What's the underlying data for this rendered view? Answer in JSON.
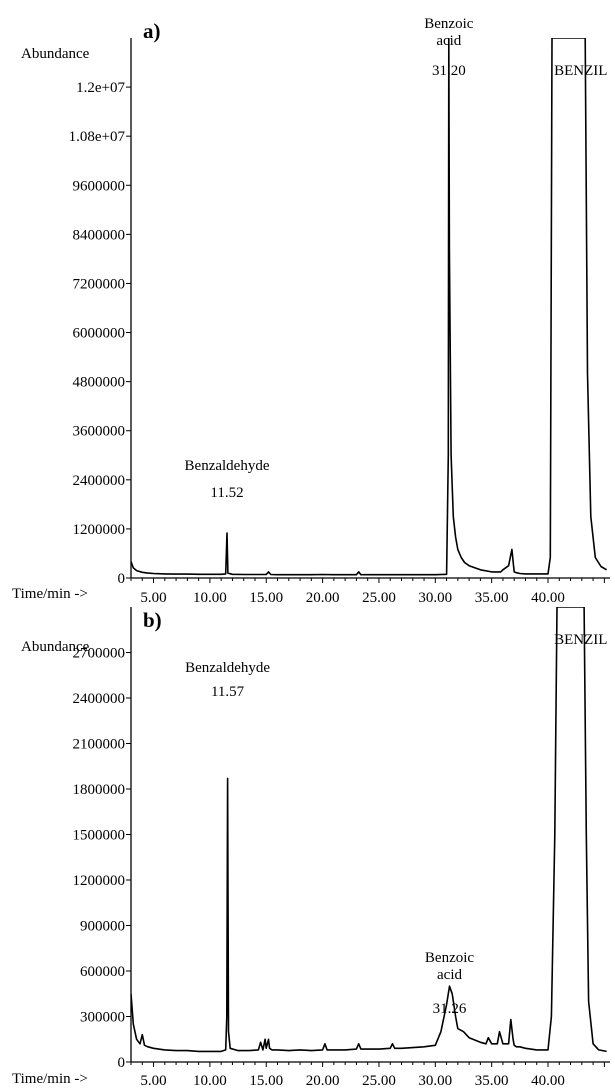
{
  "chart_data": [
    {
      "type": "line",
      "panel_label": "a)",
      "ylabel": "Abundance",
      "xlabel": "Time/min ->",
      "ylim": [
        0,
        13200000
      ],
      "xlim": [
        3.0,
        45.5
      ],
      "y_ticks": [
        0,
        1200000,
        2400000,
        3600000,
        4800000,
        6000000,
        7200000,
        8400000,
        9600000,
        10800000,
        12000000
      ],
      "y_tick_labels": [
        "0",
        "1200000",
        "2400000",
        "3600000",
        "4800000",
        "6000000",
        "7200000",
        "8400000",
        "9600000",
        "1.08e+07",
        "1.2e+07"
      ],
      "x_ticks": [
        5,
        10,
        15,
        20,
        25,
        30,
        35,
        40
      ],
      "x_tick_labels": [
        "5.00",
        "10.00",
        "15.00",
        "20.00",
        "25.00",
        "30.00",
        "35.00",
        "40.00"
      ],
      "annotations": [
        {
          "lines": [
            "Benzaldehyde",
            "11.52"
          ],
          "x": 11.52
        },
        {
          "lines": [
            "Benzoic",
            "acid",
            "31.20"
          ],
          "x": 31.2
        },
        {
          "lines": [
            "BENZIL"
          ],
          "x": 42.2
        }
      ],
      "series": [
        {
          "x": [
            3.0,
            3.2,
            3.5,
            4.0,
            4.5,
            5.0,
            6.0,
            7.0,
            8.0,
            9.0,
            10.0,
            11.0,
            11.4,
            11.52,
            11.6,
            12.0,
            13.0,
            14.0,
            15.0,
            15.2,
            15.4,
            16.0,
            17.0,
            18.0,
            19.0,
            20.0,
            21.0,
            22.0,
            23.0,
            23.2,
            23.4,
            24.0,
            25.0,
            26.0,
            27.0,
            28.0,
            29.0,
            30.0,
            31.0,
            31.15,
            31.2,
            31.25,
            31.4,
            31.6,
            31.8,
            32.0,
            32.3,
            32.6,
            33.0,
            34.0,
            35.0,
            35.8,
            36.0,
            36.5,
            36.8,
            36.9,
            37.0,
            37.2,
            37.5,
            38.0,
            39.0,
            40.0,
            40.2,
            40.35,
            40.5,
            43.3,
            43.5,
            43.8,
            44.2,
            44.7,
            45.2
          ],
          "y": [
            400000,
            250000,
            180000,
            140000,
            120000,
            110000,
            100000,
            95000,
            95000,
            90000,
            90000,
            90000,
            100000,
            1100000,
            120000,
            90000,
            85000,
            85000,
            85000,
            150000,
            85000,
            80000,
            80000,
            80000,
            80000,
            85000,
            80000,
            80000,
            80000,
            150000,
            80000,
            80000,
            80000,
            80000,
            80000,
            80000,
            80000,
            80000,
            90000,
            3000000,
            13200000,
            8000000,
            3000000,
            1500000,
            1000000,
            700000,
            500000,
            380000,
            300000,
            200000,
            150000,
            150000,
            200000,
            300000,
            700000,
            400000,
            150000,
            130000,
            110000,
            100000,
            100000,
            100000,
            500000,
            13200000,
            13200000,
            13200000,
            5000000,
            1500000,
            500000,
            280000,
            200000
          ]
        }
      ]
    },
    {
      "type": "line",
      "panel_label": "b)",
      "ylabel": "Abundance",
      "xlabel": "Time/min ->",
      "ylim": [
        0,
        3000000
      ],
      "xlim": [
        3.0,
        45.5
      ],
      "y_ticks": [
        0,
        300000,
        600000,
        900000,
        1200000,
        1500000,
        1800000,
        2100000,
        2400000,
        2700000
      ],
      "y_tick_labels": [
        "0",
        "300000",
        "600000",
        "900000",
        "1200000",
        "1500000",
        "1800000",
        "2100000",
        "2400000",
        "2700000"
      ],
      "x_ticks": [
        5,
        10,
        15,
        20,
        25,
        30,
        35,
        40
      ],
      "x_tick_labels": [
        "5.00",
        "10.00",
        "15.00",
        "20.00",
        "25.00",
        "30.00",
        "35.00",
        "40.00"
      ],
      "annotations": [
        {
          "lines": [
            "Benzaldehyde",
            "11.57"
          ],
          "x": 11.57
        },
        {
          "lines": [
            "Benzoic",
            "acid",
            "31.26"
          ],
          "x": 31.26
        },
        {
          "lines": [
            "BENZIL"
          ],
          "x": 42.2
        }
      ],
      "series": [
        {
          "x": [
            3.0,
            3.2,
            3.5,
            3.8,
            4.0,
            4.2,
            4.5,
            5.0,
            6.0,
            7.0,
            8.0,
            9.0,
            10.0,
            11.0,
            11.4,
            11.5,
            11.57,
            11.65,
            11.8,
            12.5,
            13.5,
            14.3,
            14.5,
            14.7,
            14.9,
            15.0,
            15.2,
            15.3,
            15.5,
            16.0,
            17.0,
            18.0,
            19.0,
            20.0,
            20.2,
            20.4,
            21.0,
            22.0,
            23.0,
            23.2,
            23.4,
            24.0,
            25.0,
            26.0,
            26.2,
            26.4,
            27.0,
            28.0,
            29.0,
            30.0,
            30.5,
            31.0,
            31.26,
            31.5,
            31.8,
            32.0,
            32.5,
            33.0,
            34.0,
            34.5,
            34.7,
            35.0,
            35.5,
            35.7,
            36.0,
            36.5,
            36.7,
            36.9,
            37.0,
            37.2,
            37.5,
            38.0,
            39.0,
            40.0,
            40.3,
            40.6,
            40.8,
            43.2,
            43.4,
            43.6,
            44.0,
            44.5,
            45.2
          ],
          "y": [
            450000,
            250000,
            150000,
            120000,
            180000,
            110000,
            100000,
            90000,
            80000,
            75000,
            75000,
            70000,
            70000,
            70000,
            80000,
            300000,
            1870000,
            200000,
            90000,
            75000,
            75000,
            80000,
            130000,
            80000,
            150000,
            90000,
            150000,
            90000,
            80000,
            80000,
            75000,
            80000,
            75000,
            80000,
            120000,
            80000,
            80000,
            80000,
            85000,
            120000,
            85000,
            85000,
            85000,
            90000,
            120000,
            90000,
            90000,
            95000,
            100000,
            110000,
            200000,
            380000,
            500000,
            450000,
            300000,
            220000,
            200000,
            160000,
            130000,
            120000,
            160000,
            120000,
            120000,
            200000,
            120000,
            120000,
            280000,
            150000,
            110000,
            100000,
            100000,
            90000,
            80000,
            80000,
            300000,
            1500000,
            3000000,
            3000000,
            1500000,
            400000,
            120000,
            80000,
            70000
          ]
        }
      ]
    }
  ]
}
